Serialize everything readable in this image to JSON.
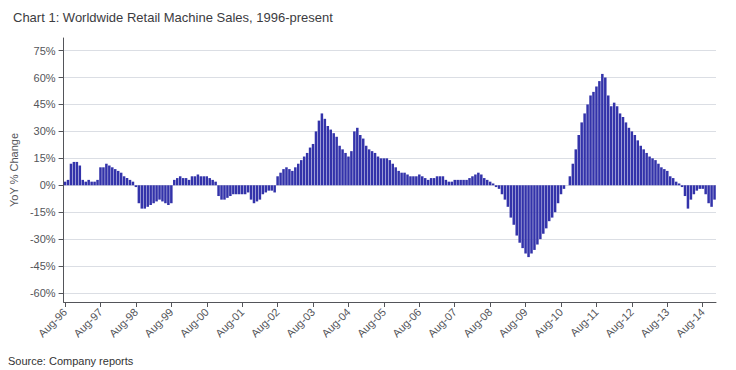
{
  "chart_data": {
    "type": "bar",
    "title": "Chart 1: Worldwide Retail Machine Sales, 1996-present",
    "ylabel": "YoY % Change",
    "source": "Source: Company reports",
    "color": "#3333AA",
    "grid": true,
    "ylim": [
      -65,
      82
    ],
    "yticks": [
      {
        "value": -60,
        "label": "-60%"
      },
      {
        "value": -45,
        "label": "-45%"
      },
      {
        "value": -30,
        "label": "-30%"
      },
      {
        "value": -15,
        "label": "-15%"
      },
      {
        "value": 0,
        "label": "0%"
      },
      {
        "value": 15,
        "label": "15%"
      },
      {
        "value": 30,
        "label": "30%"
      },
      {
        "value": 45,
        "label": "45%"
      },
      {
        "value": 60,
        "label": "60%"
      },
      {
        "value": 75,
        "label": "75%"
      }
    ],
    "categories": [
      "Aug-96",
      null,
      null,
      null,
      null,
      null,
      null,
      null,
      null,
      null,
      null,
      null,
      "Aug-97",
      null,
      null,
      null,
      null,
      null,
      null,
      null,
      null,
      null,
      null,
      null,
      "Aug-98",
      null,
      null,
      null,
      null,
      null,
      null,
      null,
      null,
      null,
      null,
      null,
      "Aug-99",
      null,
      null,
      null,
      null,
      null,
      null,
      null,
      null,
      null,
      null,
      null,
      "Aug-00",
      null,
      null,
      null,
      null,
      null,
      null,
      null,
      null,
      null,
      null,
      null,
      "Aug-01",
      null,
      null,
      null,
      null,
      null,
      null,
      null,
      null,
      null,
      null,
      null,
      "Aug-02",
      null,
      null,
      null,
      null,
      null,
      null,
      null,
      null,
      null,
      null,
      null,
      "Aug-03",
      null,
      null,
      null,
      null,
      null,
      null,
      null,
      null,
      null,
      null,
      null,
      "Aug-04",
      null,
      null,
      null,
      null,
      null,
      null,
      null,
      null,
      null,
      null,
      null,
      "Aug-05",
      null,
      null,
      null,
      null,
      null,
      null,
      null,
      null,
      null,
      null,
      null,
      "Aug-06",
      null,
      null,
      null,
      null,
      null,
      null,
      null,
      null,
      null,
      null,
      null,
      "Aug-07",
      null,
      null,
      null,
      null,
      null,
      null,
      null,
      null,
      null,
      null,
      null,
      "Aug-08",
      null,
      null,
      null,
      null,
      null,
      null,
      null,
      null,
      null,
      null,
      null,
      "Aug-09",
      null,
      null,
      null,
      null,
      null,
      null,
      null,
      null,
      null,
      null,
      null,
      "Aug-10",
      null,
      null,
      null,
      null,
      null,
      null,
      null,
      null,
      null,
      null,
      null,
      "Aug-11",
      null,
      null,
      null,
      null,
      null,
      null,
      null,
      null,
      null,
      null,
      null,
      "Aug-12",
      null,
      null,
      null,
      null,
      null,
      null,
      null,
      null,
      null,
      null,
      null,
      "Aug-13",
      null,
      null,
      null,
      null,
      null,
      null,
      null,
      null,
      null,
      null,
      null,
      "Aug-14",
      null,
      null,
      null,
      null
    ],
    "values": [
      2,
      3,
      12,
      13,
      13,
      11,
      3,
      2,
      3,
      2,
      2,
      3,
      10,
      10,
      12,
      11,
      10,
      9,
      8,
      7,
      5,
      4,
      3,
      2,
      -1,
      -10,
      -13,
      -13,
      -12,
      -11,
      -10,
      -9,
      -8,
      -9,
      -10,
      -11,
      -10,
      3,
      4,
      5,
      4,
      4,
      3,
      5,
      5,
      6,
      5,
      5,
      5,
      4,
      3,
      2,
      -6,
      -8,
      -8,
      -7,
      -6,
      -5,
      -5,
      -5,
      -5,
      -5,
      -4,
      -8,
      -10,
      -9,
      -8,
      -5,
      -4,
      -3,
      -3,
      -4,
      5,
      7,
      9,
      10,
      9,
      8,
      10,
      12,
      14,
      16,
      18,
      21,
      23,
      30,
      36,
      40,
      37,
      33,
      31,
      29,
      27,
      22,
      20,
      18,
      16,
      19,
      30,
      32,
      28,
      26,
      22,
      20,
      19,
      18,
      16,
      15,
      15,
      15,
      14,
      12,
      10,
      8,
      7,
      7,
      6,
      5,
      5,
      5,
      6,
      5,
      4,
      3,
      4,
      4,
      5,
      5,
      5,
      3,
      2,
      2,
      3,
      3,
      3,
      3,
      3,
      4,
      5,
      6,
      7,
      6,
      4,
      3,
      2,
      1,
      -1,
      -2,
      -5,
      -8,
      -12,
      -18,
      -22,
      -28,
      -32,
      -35,
      -38,
      -40,
      -38,
      -36,
      -33,
      -30,
      -27,
      -24,
      -20,
      -18,
      -15,
      -10,
      -5,
      -2,
      0,
      5,
      12,
      20,
      28,
      35,
      40,
      45,
      50,
      52,
      55,
      58,
      62,
      60,
      50,
      44,
      46,
      44,
      40,
      38,
      35,
      32,
      30,
      28,
      25,
      22,
      20,
      18,
      16,
      15,
      14,
      12,
      10,
      9,
      8,
      5,
      4,
      2,
      1,
      -1,
      -6,
      -13,
      -8,
      -5,
      -3,
      -2,
      -2,
      -5,
      -10,
      -12,
      -8
    ]
  }
}
